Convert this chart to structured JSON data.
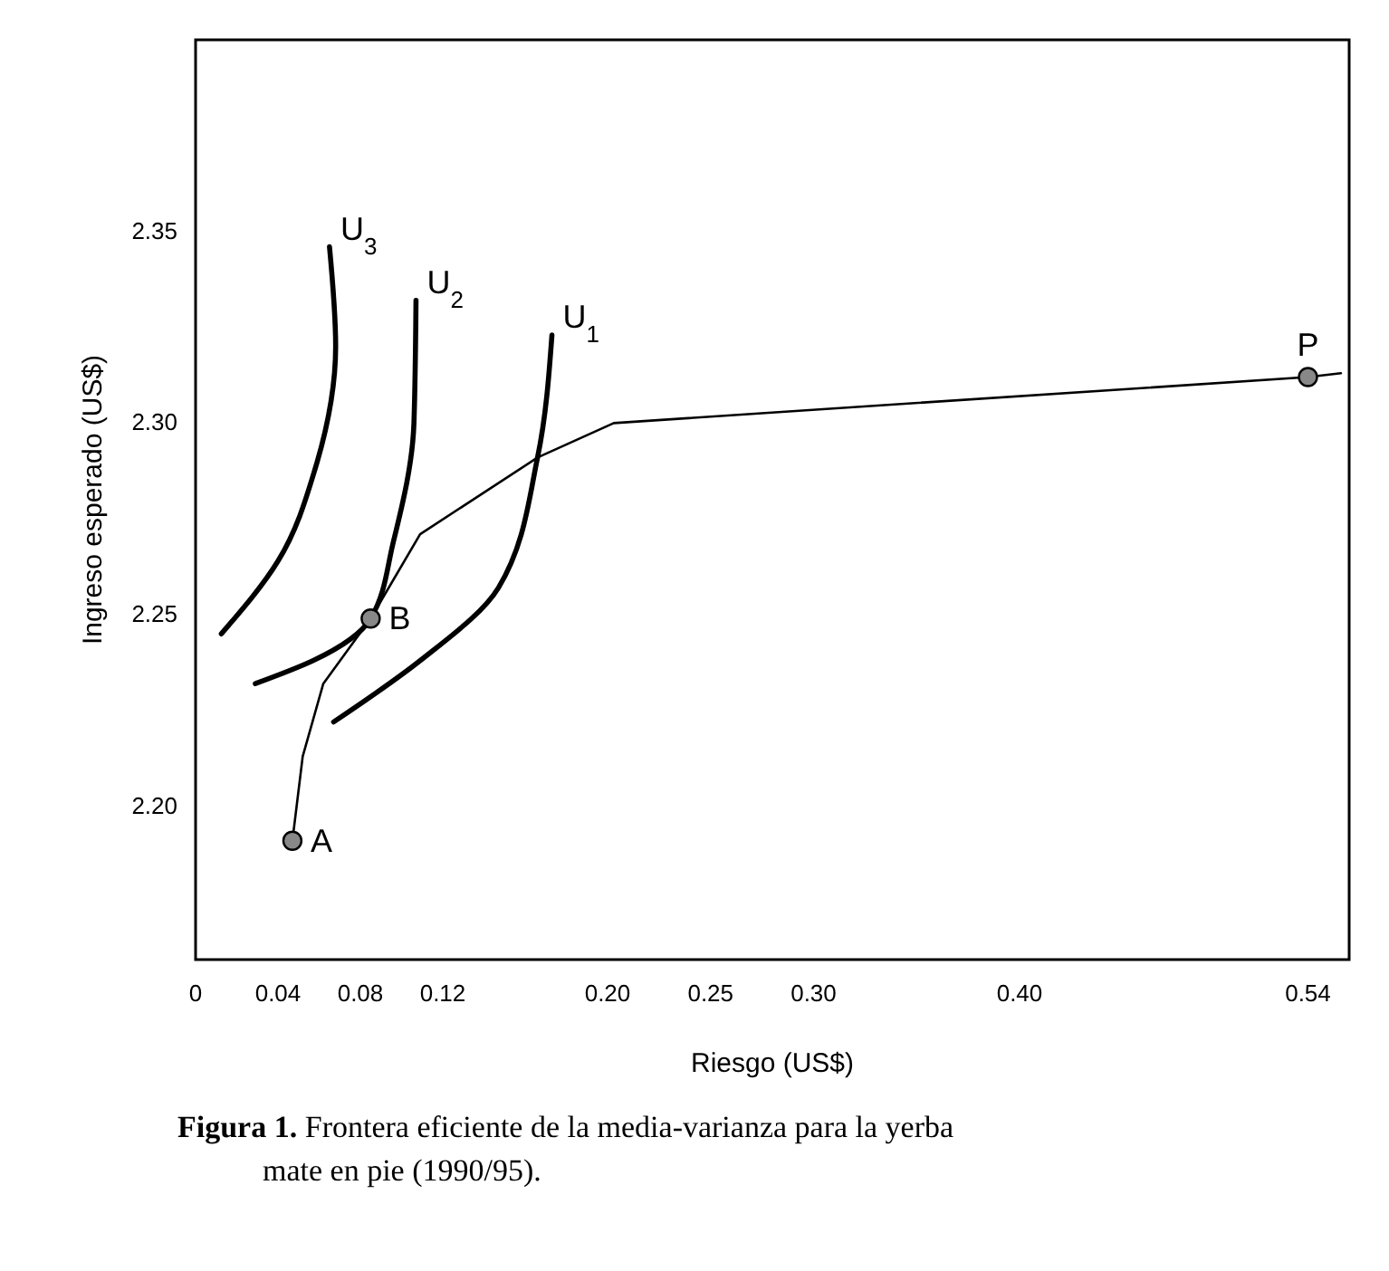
{
  "chart_data": {
    "type": "line",
    "xlabel": "Riesgo (US$)",
    "ylabel": "Ingreso esperado (US$)",
    "xlim": [
      0,
      0.56
    ],
    "ylim": [
      2.16,
      2.4
    ],
    "xticks": [
      0,
      0.04,
      0.08,
      0.12,
      {
        "value": 0.2,
        "label": "0.20"
      },
      0.25,
      {
        "value": 0.3,
        "label": "0.30"
      },
      {
        "value": 0.4,
        "label": "0.40"
      },
      0.54
    ],
    "yticks": [
      {
        "value": 2.2,
        "label": "2.20"
      },
      2.25,
      {
        "value": 2.3,
        "label": "2.30"
      },
      2.35
    ],
    "line_style": "solid",
    "series": [
      {
        "color": "#000000",
        "x": [
          0.047,
          0.052,
          0.062,
          0.085,
          0.109,
          0.166,
          0.203,
          0.54,
          0.556
        ],
        "values": [
          2.191,
          2.213,
          2.232,
          2.249,
          2.271,
          2.291,
          2.3,
          2.312,
          2.313
        ]
      },
      {
        "color": "#000000",
        "x": [
          0.067,
          0.109,
          0.147,
          0.166,
          0.173
        ],
        "values": [
          2.222,
          2.238,
          2.257,
          2.291,
          2.323
        ]
      },
      {
        "color": "#000000",
        "x": [
          0.029,
          0.057,
          0.085,
          0.096,
          0.106,
          0.107
        ],
        "values": [
          2.232,
          2.238,
          2.249,
          2.269,
          2.3,
          2.332
        ]
      },
      {
        "color": "#000000",
        "x": [
          0.0125,
          0.04,
          0.058,
          0.068,
          0.065
        ],
        "values": [
          2.245,
          2.264,
          2.288,
          2.32,
          2.346
        ]
      },
      {
        "type": "scatter",
        "marker": "circle",
        "color": "#888888",
        "x": [
          0.047,
          0.085,
          0.54
        ],
        "values": [
          2.191,
          2.249,
          2.312
        ]
      }
    ],
    "annotations": [
      {
        "text": "A",
        "x": 0.047,
        "y": 2.191
      },
      {
        "text": "B",
        "x": 0.085,
        "y": 2.249
      },
      {
        "text": "P",
        "x": 0.54,
        "y": 2.312
      },
      {
        "text": "U$_{1}$",
        "x": 0.173,
        "y": 2.323
      },
      {
        "text": "U$_{2}$",
        "x": 0.107,
        "y": 2.332
      },
      {
        "text": "U$_{3}$",
        "x": 0.065,
        "y": 2.346
      },
      "Figura 1. Frontera eficiente de la media-varianza para la yerba mate en pie (1990/95)."
    ]
  }
}
